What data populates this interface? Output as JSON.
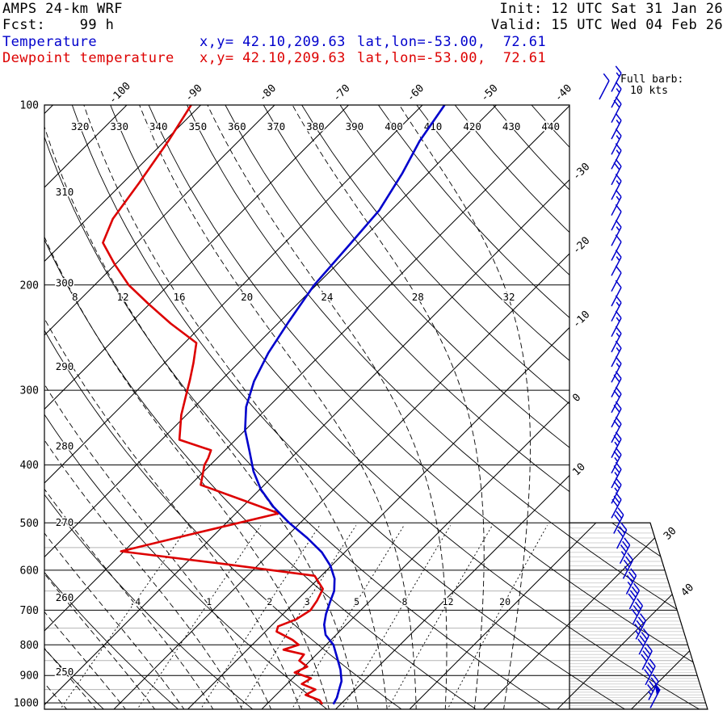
{
  "header": {
    "model": "AMPS 24-km WRF",
    "fcst_line": "Fcst:    99 h",
    "init_line": "Init: 12 UTC Sat 31 Jan 26",
    "valid_line": "Valid: 15 UTC Wed 04 Feb 26",
    "series_rows": [
      {
        "label": "Temperature",
        "xy": "x,y= 42.10,209.63",
        "latlon": "lat,lon=-53.00,  72.61",
        "color_key": "temperature"
      },
      {
        "label": "Dewpoint temperature",
        "xy": "x,y= 42.10,209.63",
        "latlon": "lat,lon=-53.00,  72.61",
        "color_key": "dewpoint"
      }
    ]
  },
  "legend": {
    "line1": "Full barb:",
    "line2": "10 kts"
  },
  "colors": {
    "temperature": "#0000cc",
    "dewpoint": "#dd0000",
    "axis": "#000000",
    "minor_line": "#b4b4b4",
    "wind_barb": "#0000cc",
    "background": "#ffffff"
  },
  "chart_data": {
    "type": "line",
    "title": "AMPS 24-km WRF skew-T log-P sounding",
    "pressure_ticks": [
      100,
      200,
      300,
      400,
      500,
      600,
      700,
      800,
      900,
      1000
    ],
    "pressure_range": [
      100,
      1030
    ],
    "isotherms": {
      "min": -110,
      "max": 50,
      "step": 10,
      "top_labels": [
        -100,
        -90,
        -80,
        -70,
        -60,
        -50,
        -40
      ],
      "right_labels": [
        -30,
        -20,
        -10,
        0,
        10
      ],
      "corner_labels": [
        30,
        40
      ]
    },
    "dry_adiabats_K": [
      250,
      260,
      270,
      280,
      290,
      300,
      310,
      320,
      330,
      340,
      350,
      360,
      370,
      380,
      390,
      400,
      410,
      420,
      430,
      440
    ],
    "moist_adiabats_C": [
      -40,
      -36,
      -32,
      -28,
      -24,
      -20,
      -16,
      -12,
      -8,
      -4,
      0,
      4,
      8,
      12,
      16,
      20,
      24,
      28,
      32
    ],
    "moist_adiabat_labels": [
      8,
      12,
      16,
      20,
      24,
      28,
      32
    ],
    "mixing_ratio_g_kg": [
      0.4,
      1,
      2,
      3,
      5,
      8,
      12,
      20
    ],
    "mixing_ratio_labels": [
      ".4",
      "1",
      "2",
      "3",
      "5",
      "8",
      "12",
      "20"
    ],
    "temperature_profile": {
      "p": [
        100,
        115,
        130,
        150,
        170,
        200,
        230,
        260,
        290,
        320,
        350,
        380,
        410,
        440,
        470,
        500,
        530,
        560,
        590,
        620,
        650,
        680,
        710,
        740,
        770,
        800,
        840,
        880,
        920,
        950,
        980,
        1005
      ],
      "t": [
        -57.0,
        -55.5,
        -53.5,
        -51.6,
        -51.0,
        -50.3,
        -48.8,
        -47.3,
        -45.4,
        -43.0,
        -40.0,
        -36.5,
        -33.3,
        -29.8,
        -25.8,
        -21.5,
        -17.0,
        -13.1,
        -10.1,
        -7.8,
        -6.2,
        -5.2,
        -4.2,
        -3.0,
        -1.4,
        1.0,
        3.2,
        5.3,
        7.0,
        7.8,
        8.6,
        9.0
      ]
    },
    "dewpoint_profile": {
      "p": [
        100,
        115,
        135,
        155,
        170,
        185,
        200,
        215,
        232,
        250,
        270,
        288,
        306,
        330,
        363,
        378,
        390,
        400,
        432,
        460,
        482,
        520,
        558,
        584,
        613,
        645,
        675,
        700,
        725,
        745,
        760,
        785,
        800,
        815,
        830,
        850,
        870,
        890,
        910,
        930,
        950,
        970,
        990,
        1005
      ],
      "t": [
        -91.3,
        -89.5,
        -87.8,
        -86.5,
        -84.6,
        -80.0,
        -75.4,
        -70.2,
        -64.5,
        -58.4,
        -56.1,
        -54.3,
        -52.7,
        -50.7,
        -47.6,
        -41.9,
        -41.2,
        -40.8,
        -38.6,
        -30.3,
        -24.2,
        -32.7,
        -40.4,
        -25.7,
        -10.9,
        -8.0,
        -7.2,
        -6.8,
        -7.5,
        -9.0,
        -8.5,
        -5.2,
        -3.7,
        -5.1,
        -1.7,
        -1.5,
        0.4,
        -0.5,
        2.5,
        2.0,
        4.6,
        4.0,
        6.6,
        7.5
      ]
    },
    "wind_barbs": [
      {
        "p": 95,
        "kt": 15
      },
      {
        "p": 101,
        "kt": 15
      },
      {
        "p": 107,
        "kt": 20
      },
      {
        "p": 114,
        "kt": 15
      },
      {
        "p": 121,
        "kt": 15
      },
      {
        "p": 128,
        "kt": 15
      },
      {
        "p": 136,
        "kt": 20
      },
      {
        "p": 144,
        "kt": 15
      },
      {
        "p": 153,
        "kt": 15
      },
      {
        "p": 162,
        "kt": 10
      },
      {
        "p": 172,
        "kt": 15
      },
      {
        "p": 182,
        "kt": 10
      },
      {
        "p": 193,
        "kt": 15
      },
      {
        "p": 205,
        "kt": 10
      },
      {
        "p": 217,
        "kt": 10
      },
      {
        "p": 230,
        "kt": 15
      },
      {
        "p": 244,
        "kt": 15
      },
      {
        "p": 259,
        "kt": 15
      },
      {
        "p": 274,
        "kt": 15
      },
      {
        "p": 291,
        "kt": 15
      },
      {
        "p": 308,
        "kt": 20
      },
      {
        "p": 327,
        "kt": 20
      },
      {
        "p": 346,
        "kt": 20
      },
      {
        "p": 367,
        "kt": 20
      },
      {
        "p": 389,
        "kt": 25
      },
      {
        "p": 413,
        "kt": 25
      },
      {
        "p": 437,
        "kt": 25
      },
      {
        "p": 464,
        "kt": 25
      },
      {
        "p": 491,
        "kt": 30
      },
      {
        "p": 521,
        "kt": 30
      },
      {
        "p": 552,
        "kt": 30
      },
      {
        "p": 585,
        "kt": 35
      },
      {
        "p": 620,
        "kt": 35
      },
      {
        "p": 658,
        "kt": 35
      },
      {
        "p": 697,
        "kt": 40
      },
      {
        "p": 739,
        "kt": 40
      },
      {
        "p": 783,
        "kt": 45
      },
      {
        "p": 830,
        "kt": 40
      },
      {
        "p": 880,
        "kt": 40
      },
      {
        "p": 933,
        "kt": 40
      },
      {
        "p": 989,
        "kt": 45
      },
      {
        "p": 1020,
        "kt": 50
      }
    ]
  }
}
